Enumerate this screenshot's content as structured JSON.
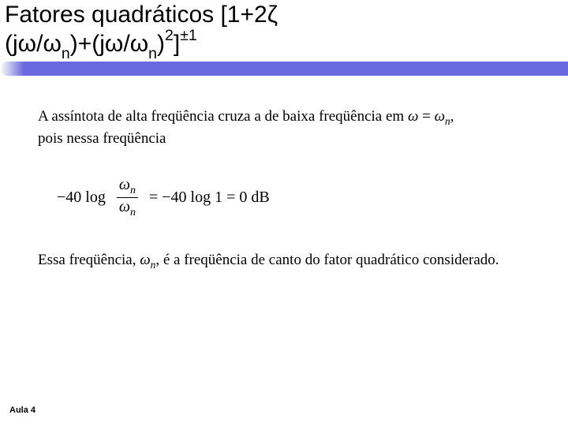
{
  "title": {
    "line1_prefix": "Fatores quadráticos [1+2",
    "line1_zeta": "ζ",
    "line2_a": "(j",
    "line2_omega": "ω",
    "line2_slash": "/",
    "line2_omega2": "ω",
    "line2_n": "n",
    "line2_b": ")+(j",
    "line2_omega3": "ω",
    "line2_slash2": "/",
    "line2_omega4": "ω",
    "line2_n2": "n",
    "line2_c": ")",
    "line2_sq": "2",
    "line2_d": "]",
    "line2_pm1": "±1"
  },
  "body": {
    "p1_a": "A assíntota de alta freqüência cruza a de baixa freqüência em ",
    "p1_om": "ω",
    "p1_eq": " = ",
    "p1_om2": "ω",
    "p1_n": "n",
    "p1_b": ",",
    "p1_line2": "pois nessa freqüência",
    "eq_lhs_a": "−40 log",
    "eq_frac_num_om": "ω",
    "eq_frac_num_n": "n",
    "eq_frac_den_om": "ω",
    "eq_frac_den_n": "n",
    "eq_mid": "= −40 log 1 = 0 dB",
    "p2_a": "Essa freqüência, ",
    "p2_om": "ω",
    "p2_n": "n",
    "p2_b": ", é a freqüência de canto do fator quadrático considerado."
  },
  "footer": {
    "label": "Aula 4"
  },
  "colors": {
    "accent": "#6a6ae0",
    "text": "#000000",
    "bg": "#ffffff"
  }
}
